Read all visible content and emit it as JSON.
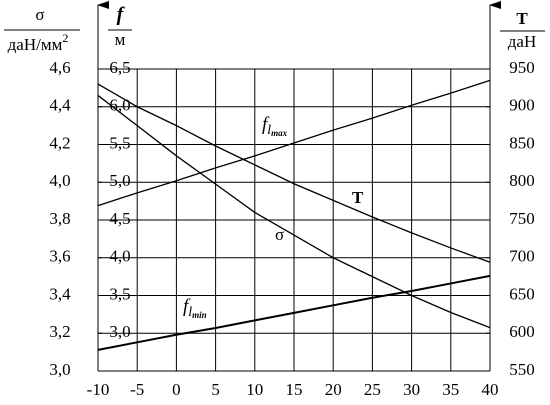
{
  "chart_data": {
    "type": "line",
    "axis_labels": {
      "y": {
        "numerator": "σ",
        "denominator": "даН/мм",
        "exponent": "2"
      },
      "y2": {
        "numerator": "f",
        "denominator": "м"
      },
      "y3": {
        "numerator": "T",
        "denominator": "даН"
      }
    },
    "x": [
      -10,
      -5,
      0,
      5,
      10,
      15,
      20,
      25,
      30,
      35,
      40
    ],
    "xlim": [
      -10,
      40
    ],
    "xticks": [
      -10,
      -5,
      0,
      5,
      10,
      15,
      20,
      25,
      30,
      35,
      40
    ],
    "ylim": [
      3.0,
      4.6
    ],
    "yticks": [
      {
        "value": 3.0,
        "label": "3,0"
      },
      {
        "value": 3.2,
        "label": "3,2"
      },
      {
        "value": 3.4,
        "label": "3,4"
      },
      {
        "value": 3.6,
        "label": "3,6"
      },
      {
        "value": 3.8,
        "label": "3,8"
      },
      {
        "value": 4.0,
        "label": "4,0"
      },
      {
        "value": 4.2,
        "label": "4,2"
      },
      {
        "value": 4.4,
        "label": "4,4"
      },
      {
        "value": 4.6,
        "label": "4,6"
      }
    ],
    "y2lim": [
      2.5,
      6.5
    ],
    "y2ticks": [
      {
        "value": 3.0,
        "label": "3,0"
      },
      {
        "value": 3.5,
        "label": "3,5"
      },
      {
        "value": 4.0,
        "label": "4,0"
      },
      {
        "value": 4.5,
        "label": "4,5"
      },
      {
        "value": 5.0,
        "label": "5,0"
      },
      {
        "value": 5.5,
        "label": "5,5"
      },
      {
        "value": 6.0,
        "label": "6,0"
      },
      {
        "value": 6.5,
        "label": "6,5"
      }
    ],
    "y3lim": [
      550,
      950
    ],
    "y3ticks": [
      550,
      600,
      650,
      700,
      750,
      800,
      850,
      900,
      950
    ],
    "grid": true,
    "series": [
      {
        "name": "f",
        "subscript": "l",
        "subsubscript": "max",
        "color": "#000000",
        "axis": "y2",
        "values": [
          4.69,
          4.86,
          5.02,
          5.19,
          5.35,
          5.52,
          5.69,
          5.85,
          6.02,
          6.18,
          6.35
        ]
      },
      {
        "name": "f",
        "subscript": "l",
        "subsubscript": "min",
        "color": "#000000",
        "axis": "y2",
        "values": [
          2.78,
          2.88,
          2.98,
          3.07,
          3.17,
          3.27,
          3.37,
          3.47,
          3.56,
          3.66,
          3.76
        ]
      },
      {
        "name": "T",
        "color": "#000000",
        "axis": "y3",
        "values": [
          930,
          900,
          875,
          848,
          823,
          798,
          776,
          754,
          733,
          713,
          694
        ]
      },
      {
        "name": "σ",
        "color": "#000000",
        "axis": "y",
        "values": [
          4.46,
          4.3,
          4.14,
          3.99,
          3.84,
          3.72,
          3.6,
          3.5,
          3.4,
          3.31,
          3.23
        ]
      }
    ]
  }
}
